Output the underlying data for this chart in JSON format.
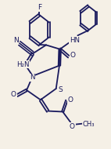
{
  "background_color": "#f5f0e6",
  "line_color": "#1a1a5e",
  "line_width": 1.3,
  "figsize": [
    1.42,
    1.9
  ],
  "dpi": 100,
  "xlim": [
    0.0,
    1.0
  ],
  "ylim": [
    0.0,
    1.0
  ]
}
